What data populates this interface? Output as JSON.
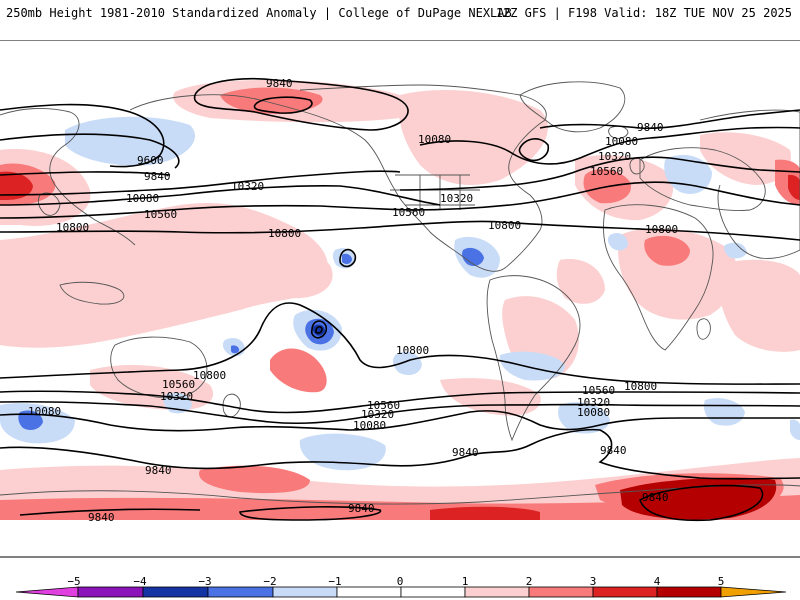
{
  "header": {
    "title_left": "250mb Height 1981-2010 Standardized Anomaly | College of DuPage NEXLAB",
    "title_right": "12Z GFS | F198 Valid: 18Z TUE NOV 25 2025"
  },
  "colors": {
    "neg5": "#e040e0",
    "neg4": "#8a14b8",
    "neg3": "#1434a4",
    "neg2": "#4a72e4",
    "neg1": "#c8dcf8",
    "zero": "#ffffff",
    "pos1": "#fcd0d0",
    "pos2": "#f87a7a",
    "pos3": "#dc2222",
    "pos4": "#b40000",
    "pos5": "#f0a000",
    "land_outline": "#555555",
    "contour": "#000000"
  },
  "colorbar": {
    "ticks": [
      "−5",
      "−4",
      "−3",
      "−2",
      "−1",
      "0",
      "1",
      "2",
      "3",
      "4",
      "5"
    ]
  },
  "contours": {
    "labels": [
      {
        "id": "c9840-nw",
        "text": "9840"
      },
      {
        "id": "c9840-ne",
        "text": "9840"
      },
      {
        "id": "c9600-w",
        "text": "9600"
      },
      {
        "id": "c9840-w",
        "text": "9840"
      },
      {
        "id": "c10080-w",
        "text": "10080"
      },
      {
        "id": "c10320-w",
        "text": "10320"
      },
      {
        "id": "c10560-w",
        "text": "10560"
      },
      {
        "id": "c10800-w",
        "text": "10800"
      },
      {
        "id": "c10800-c",
        "text": "10800"
      },
      {
        "id": "c10080-na",
        "text": "10080"
      },
      {
        "id": "c10320-na",
        "text": "10320"
      },
      {
        "id": "c10560-na",
        "text": "10560"
      },
      {
        "id": "c10800-na",
        "text": "10800"
      },
      {
        "id": "c10080-eu",
        "text": "10080"
      },
      {
        "id": "c10320-eu",
        "text": "10320"
      },
      {
        "id": "c10560-eu",
        "text": "10560"
      },
      {
        "id": "c10800-af",
        "text": "10800"
      },
      {
        "id": "c10800-sp",
        "text": "10800"
      },
      {
        "id": "c10800-au",
        "text": "10800"
      },
      {
        "id": "c10560-au",
        "text": "10560"
      },
      {
        "id": "c10320-au",
        "text": "10320"
      },
      {
        "id": "c10080-sw",
        "text": "10080"
      },
      {
        "id": "c10560-s",
        "text": "10560"
      },
      {
        "id": "c10320-s",
        "text": "10320"
      },
      {
        "id": "c10080-s",
        "text": "10080"
      },
      {
        "id": "c9840-s",
        "text": "9840"
      },
      {
        "id": "c10800-se",
        "text": "10800"
      },
      {
        "id": "c10560-se",
        "text": "10560"
      },
      {
        "id": "c10320-se",
        "text": "10320"
      },
      {
        "id": "c10080-se",
        "text": "10080"
      },
      {
        "id": "c9840-se",
        "text": "9840"
      },
      {
        "id": "c9840-sw",
        "text": "9840"
      },
      {
        "id": "c9840-ssw",
        "text": "9840"
      },
      {
        "id": "c9840-sc",
        "text": "9840"
      },
      {
        "id": "c9840-sse",
        "text": "9840"
      }
    ]
  }
}
